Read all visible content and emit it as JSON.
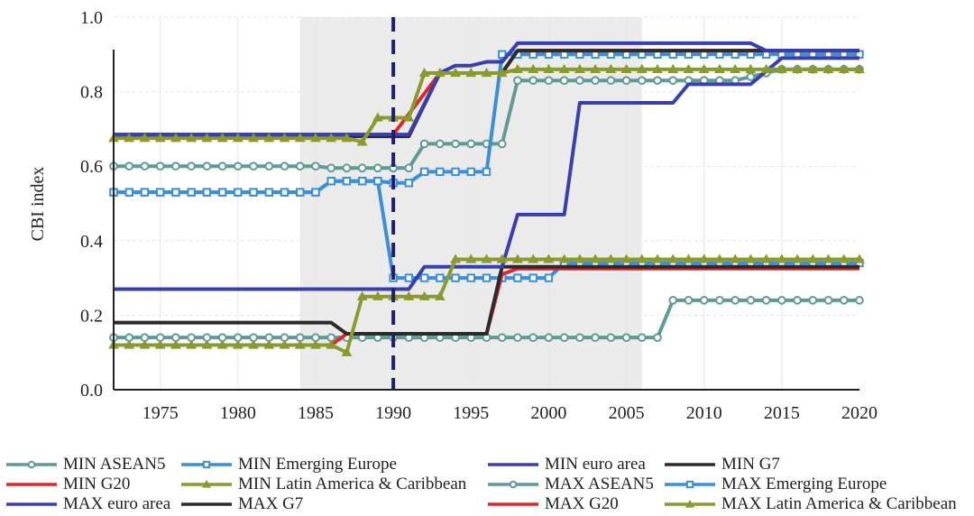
{
  "chart_data": {
    "type": "line",
    "title": "",
    "xlabel": "",
    "ylabel": "CBI index",
    "xlim": [
      1972,
      2020
    ],
    "ylim": [
      0.0,
      1.0
    ],
    "x_ticks": [
      1975,
      1980,
      1985,
      1990,
      1995,
      2000,
      2005,
      2010,
      2015,
      2020
    ],
    "y_ticks": [
      "0.0",
      "0.2",
      "0.4",
      "0.6",
      "0.8",
      "1.0"
    ],
    "grid": true,
    "legend_position": "bottom",
    "shaded_region": {
      "from": 1984,
      "to": 2006,
      "color": "#ebebeb"
    },
    "vertical_reference_line": {
      "x": 1990,
      "style": "dashed",
      "color": "#1f1f6e"
    },
    "series": [
      {
        "name": "MIN ASEAN5",
        "color": "#5f9a96",
        "marker": "circle",
        "points": [
          [
            1972,
            0.14
          ],
          [
            2007,
            0.14
          ],
          [
            2008,
            0.24
          ],
          [
            2020,
            0.24
          ]
        ]
      },
      {
        "name": "MIN Emerging Europe",
        "color": "#3b8fd6",
        "marker": "square",
        "points": [
          [
            1972,
            0.53
          ],
          [
            1985,
            0.53
          ],
          [
            1986,
            0.56
          ],
          [
            1989,
            0.56
          ],
          [
            1990,
            0.3
          ],
          [
            2000,
            0.3
          ],
          [
            2001,
            0.34
          ],
          [
            2020,
            0.34
          ]
        ]
      },
      {
        "name": "MIN euro area",
        "color": "#3a3fb0",
        "marker": "none",
        "points": [
          [
            1972,
            0.27
          ],
          [
            1991,
            0.27
          ],
          [
            1992,
            0.33
          ],
          [
            1997,
            0.33
          ],
          [
            1998,
            0.47
          ],
          [
            2001,
            0.47
          ],
          [
            2002,
            0.77
          ],
          [
            2008,
            0.77
          ],
          [
            2009,
            0.82
          ],
          [
            2013,
            0.82
          ],
          [
            2015,
            0.89
          ],
          [
            2020,
            0.89
          ]
        ]
      },
      {
        "name": "MIN G7",
        "color": "#2b2b2b",
        "marker": "none",
        "points": [
          [
            1972,
            0.18
          ],
          [
            1986,
            0.18
          ],
          [
            1987,
            0.15
          ],
          [
            1996,
            0.15
          ],
          [
            1997,
            0.33
          ],
          [
            2020,
            0.33
          ]
        ]
      },
      {
        "name": "MIN G20",
        "color": "#e0262b",
        "marker": "none",
        "points": [
          [
            1972,
            0.12
          ],
          [
            1986,
            0.12
          ],
          [
            1987,
            0.15
          ],
          [
            1996,
            0.15
          ],
          [
            1997,
            0.31
          ],
          [
            1998,
            0.325
          ],
          [
            2020,
            0.325
          ]
        ]
      },
      {
        "name": "MIN Latin America & Caribbean",
        "color": "#8b9a2e",
        "marker": "triangle",
        "points": [
          [
            1972,
            0.12
          ],
          [
            1986,
            0.12
          ],
          [
            1987,
            0.1
          ],
          [
            1988,
            0.25
          ],
          [
            1993,
            0.25
          ],
          [
            1994,
            0.35
          ],
          [
            2020,
            0.35
          ]
        ]
      },
      {
        "name": "MAX ASEAN5",
        "color": "#5f9a96",
        "marker": "circle",
        "points": [
          [
            1972,
            0.6
          ],
          [
            1985,
            0.6
          ],
          [
            1986,
            0.595
          ],
          [
            1991,
            0.595
          ],
          [
            1992,
            0.66
          ],
          [
            1997,
            0.66
          ],
          [
            1998,
            0.83
          ],
          [
            2012,
            0.83
          ],
          [
            2015,
            0.86
          ],
          [
            2020,
            0.86
          ]
        ]
      },
      {
        "name": "MAX Emerging Europe",
        "color": "#3b8fd6",
        "marker": "square",
        "points": [
          [
            1972,
            0.53
          ],
          [
            1985,
            0.53
          ],
          [
            1986,
            0.56
          ],
          [
            1989,
            0.56
          ],
          [
            1990,
            0.555
          ],
          [
            1991,
            0.555
          ],
          [
            1992,
            0.585
          ],
          [
            1996,
            0.585
          ],
          [
            1997,
            0.9
          ],
          [
            2020,
            0.9
          ]
        ]
      },
      {
        "name": "MAX euro area",
        "color": "#3a3fb0",
        "marker": "none",
        "points": [
          [
            1972,
            0.685
          ],
          [
            1991,
            0.685
          ],
          [
            1993,
            0.85
          ],
          [
            1994,
            0.87
          ],
          [
            1995,
            0.87
          ],
          [
            1996,
            0.88
          ],
          [
            1997,
            0.88
          ],
          [
            1998,
            0.93
          ],
          [
            2013,
            0.93
          ],
          [
            2014,
            0.91
          ],
          [
            2020,
            0.91
          ]
        ]
      },
      {
        "name": "MAX G7",
        "color": "#2b2b2b",
        "marker": "none",
        "points": [
          [
            1972,
            0.68
          ],
          [
            1991,
            0.68
          ],
          [
            1993,
            0.85
          ],
          [
            1997,
            0.85
          ],
          [
            1998,
            0.91
          ],
          [
            2020,
            0.91
          ]
        ]
      },
      {
        "name": "MAX G20",
        "color": "#e0262b",
        "marker": "none",
        "points": [
          [
            1972,
            0.685
          ],
          [
            1990,
            0.685
          ],
          [
            1993,
            0.85
          ],
          [
            1997,
            0.85
          ],
          [
            1998,
            0.91
          ],
          [
            2020,
            0.91
          ]
        ]
      },
      {
        "name": "MAX Latin America & Caribbean",
        "color": "#8b9a2e",
        "marker": "triangle",
        "points": [
          [
            1972,
            0.675
          ],
          [
            1987,
            0.675
          ],
          [
            1988,
            0.665
          ],
          [
            1989,
            0.73
          ],
          [
            1991,
            0.73
          ],
          [
            1992,
            0.85
          ],
          [
            1997,
            0.85
          ],
          [
            1998,
            0.86
          ],
          [
            2020,
            0.86
          ]
        ]
      }
    ]
  }
}
